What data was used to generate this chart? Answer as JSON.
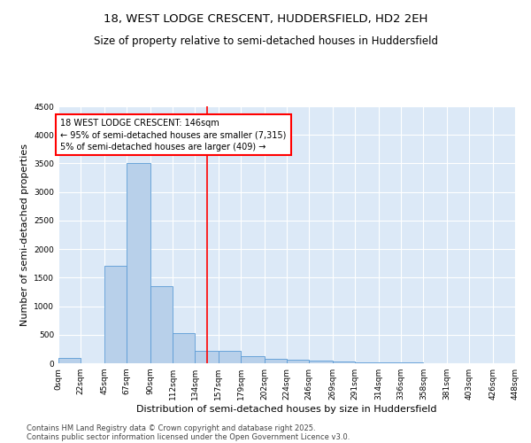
{
  "title_line1": "18, WEST LODGE CRESCENT, HUDDERSFIELD, HD2 2EH",
  "title_line2": "Size of property relative to semi-detached houses in Huddersfield",
  "xlabel": "Distribution of semi-detached houses by size in Huddersfield",
  "ylabel": "Number of semi-detached properties",
  "bin_edges": [
    0,
    22,
    45,
    67,
    90,
    112,
    134,
    157,
    179,
    202,
    224,
    246,
    269,
    291,
    314,
    336,
    358,
    381,
    403,
    426,
    448
  ],
  "bin_heights": [
    100,
    0,
    1700,
    3500,
    1350,
    520,
    220,
    220,
    120,
    80,
    55,
    40,
    30,
    20,
    10,
    10,
    5,
    5,
    3,
    3
  ],
  "bar_facecolor": "#b8d0ea",
  "bar_edgecolor": "#5b9bd5",
  "bg_color": "#dce9f7",
  "property_line_x": 146,
  "property_line_color": "red",
  "annotation_text": "18 WEST LODGE CRESCENT: 146sqm\n← 95% of semi-detached houses are smaller (7,315)\n5% of semi-detached houses are larger (409) →",
  "annotation_box_color": "red",
  "annotation_bg": "white",
  "ylim": [
    0,
    4500
  ],
  "yticks": [
    0,
    500,
    1000,
    1500,
    2000,
    2500,
    3000,
    3500,
    4000,
    4500
  ],
  "footnote1": "Contains HM Land Registry data © Crown copyright and database right 2025.",
  "footnote2": "Contains public sector information licensed under the Open Government Licence v3.0.",
  "title_fontsize": 9.5,
  "subtitle_fontsize": 8.5,
  "label_fontsize": 8,
  "tick_fontsize": 6.5,
  "footnote_fontsize": 6,
  "annotation_fontsize": 7
}
